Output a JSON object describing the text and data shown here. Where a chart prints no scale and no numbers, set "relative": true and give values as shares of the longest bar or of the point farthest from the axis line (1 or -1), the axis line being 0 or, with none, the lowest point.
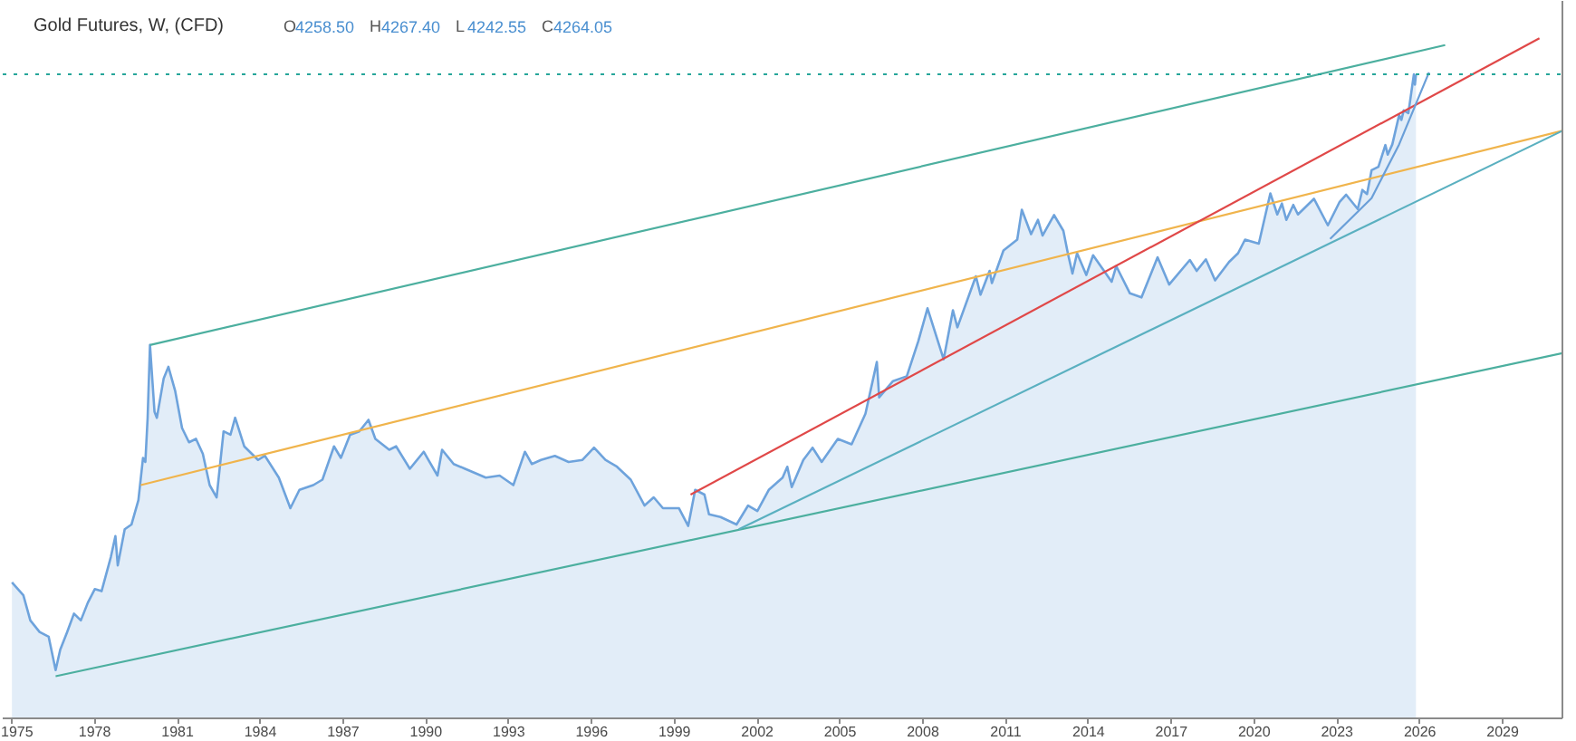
{
  "chart_data": {
    "type": "area",
    "title": "Gold Futures, W, (CFD)",
    "annotations": [
      "O4258.50",
      "H4267.40",
      "L4242.55",
      "C4264.05"
    ],
    "relative": true,
    "xlim": [
      "1974-09",
      "2031-03"
    ],
    "xticks": [
      "1975",
      "1978",
      "1981",
      "1984",
      "1987",
      "1990",
      "1993",
      "1996",
      "1999",
      "2002",
      "2005",
      "2008",
      "2011",
      "2014",
      "2017",
      "2020",
      "2023",
      "2026",
      "2029"
    ],
    "ref_lines": [
      {
        "axis": "y",
        "value": 0.947,
        "color": "#26a69a",
        "line_style": "dotted"
      }
    ],
    "series": [
      {
        "color": "#6ea3dc",
        "x": [
          "1975-01",
          "1975-06",
          "1975-09",
          "1976-01",
          "1976-05",
          "1976-08",
          "1976-10",
          "1977-01",
          "1977-04",
          "1977-07",
          "1977-10",
          "1978-01",
          "1978-04",
          "1978-08",
          "1978-10",
          "1978-11",
          "1979-02",
          "1979-05",
          "1979-08",
          "1979-10",
          "1979-11",
          "1979-12",
          "1980-01",
          "1980-03",
          "1980-04",
          "1980-07",
          "1980-09",
          "1980-12",
          "1981-03",
          "1981-06",
          "1981-09",
          "1981-12",
          "1982-03",
          "1982-06",
          "1982-09",
          "1982-12",
          "1983-02",
          "1983-06",
          "1983-12",
          "1984-03",
          "1984-09",
          "1985-02",
          "1985-06",
          "1985-12",
          "1986-04",
          "1986-09",
          "1986-12",
          "1987-04",
          "1987-08",
          "1987-12",
          "1988-03",
          "1988-09",
          "1988-12",
          "1989-06",
          "1989-12",
          "1990-06",
          "1990-08",
          "1991-01",
          "1991-06",
          "1992-03",
          "1992-09",
          "1993-03",
          "1993-08",
          "1993-11",
          "1994-03",
          "1994-09",
          "1995-03",
          "1995-09",
          "1996-02",
          "1996-07",
          "1996-12",
          "1997-06",
          "1997-12",
          "1998-04",
          "1998-08",
          "1999-03",
          "1999-07",
          "1999-10",
          "2000-02",
          "2000-04",
          "2000-09",
          "2001-04",
          "2001-09",
          "2002-01",
          "2002-06",
          "2002-12",
          "2003-02",
          "2003-04",
          "2003-09",
          "2004-01",
          "2004-05",
          "2004-12",
          "2005-06",
          "2005-12",
          "2006-05",
          "2006-06",
          "2006-12",
          "2007-06",
          "2007-11",
          "2008-03",
          "2008-10",
          "2009-02",
          "2009-04",
          "2009-12",
          "2010-02",
          "2010-06",
          "2010-07",
          "2010-12",
          "2011-06",
          "2011-08",
          "2011-12",
          "2012-03",
          "2012-05",
          "2012-10",
          "2013-02",
          "2013-04",
          "2013-06",
          "2013-08",
          "2013-12",
          "2014-03",
          "2014-11",
          "2015-01",
          "2015-07",
          "2015-12",
          "2016-07",
          "2016-12",
          "2017-09",
          "2017-12",
          "2018-04",
          "2018-08",
          "2019-02",
          "2019-06",
          "2019-09",
          "2020-03",
          "2020-08",
          "2020-11",
          "2021-01",
          "2021-03",
          "2021-06",
          "2021-08",
          "2022-03",
          "2022-09",
          "2023-02",
          "2023-05",
          "2023-10",
          "2023-12",
          "2024-02",
          "2024-04",
          "2024-07",
          "2024-10",
          "2024-11",
          "2025-01",
          "2025-04",
          "2025-05",
          "2025-06",
          "2025-08",
          "2025-09",
          "2025-10-13",
          "2025-10-27",
          "2025-11-10"
        ],
        "values": [
          0.2,
          0.181,
          0.144,
          0.127,
          0.12,
          0.071,
          0.101,
          0.127,
          0.154,
          0.144,
          0.17,
          0.19,
          0.187,
          0.237,
          0.268,
          0.225,
          0.278,
          0.285,
          0.321,
          0.383,
          0.377,
          0.442,
          0.549,
          0.451,
          0.442,
          0.5,
          0.517,
          0.481,
          0.427,
          0.406,
          0.411,
          0.389,
          0.343,
          0.325,
          0.422,
          0.417,
          0.442,
          0.4,
          0.38,
          0.386,
          0.354,
          0.309,
          0.336,
          0.343,
          0.351,
          0.4,
          0.383,
          0.417,
          0.422,
          0.439,
          0.411,
          0.395,
          0.4,
          0.367,
          0.392,
          0.357,
          0.395,
          0.374,
          0.367,
          0.354,
          0.357,
          0.343,
          0.392,
          0.374,
          0.38,
          0.386,
          0.377,
          0.38,
          0.398,
          0.38,
          0.37,
          0.351,
          0.313,
          0.325,
          0.309,
          0.309,
          0.283,
          0.336,
          0.329,
          0.3,
          0.296,
          0.285,
          0.313,
          0.305,
          0.336,
          0.354,
          0.37,
          0.34,
          0.38,
          0.398,
          0.377,
          0.411,
          0.403,
          0.448,
          0.524,
          0.472,
          0.496,
          0.503,
          0.555,
          0.603,
          0.528,
          0.6,
          0.575,
          0.65,
          0.623,
          0.658,
          0.64,
          0.688,
          0.704,
          0.748,
          0.712,
          0.733,
          0.71,
          0.74,
          0.717,
          0.684,
          0.654,
          0.684,
          0.652,
          0.681,
          0.642,
          0.665,
          0.625,
          0.619,
          0.678,
          0.638,
          0.674,
          0.658,
          0.675,
          0.644,
          0.671,
          0.684,
          0.704,
          0.698,
          0.772,
          0.741,
          0.757,
          0.733,
          0.755,
          0.741,
          0.764,
          0.725,
          0.759,
          0.77,
          0.749,
          0.777,
          0.771,
          0.806,
          0.811,
          0.843,
          0.829,
          0.844,
          0.887,
          0.88,
          0.894,
          0.89,
          0.914,
          0.947,
          0.932,
          0.947
        ]
      },
      {
        "type": "line",
        "color": "#4caf9f",
        "x": [
          "1980-01",
          "2026-12"
        ],
        "values": [
          0.549,
          0.99
        ]
      },
      {
        "type": "line",
        "color": "#f0b44c",
        "x": [
          "1979-09",
          "2031-03"
        ],
        "values": [
          0.343,
          0.864
        ]
      },
      {
        "type": "line",
        "color": "#e04848",
        "x": [
          "1999-08",
          "2030-05"
        ],
        "values": [
          0.329,
          1
        ]
      },
      {
        "type": "line",
        "color": "#4caf9f",
        "x": [
          "1976-08",
          "2031-03"
        ],
        "values": [
          0.062,
          0.537
        ]
      },
      {
        "type": "line",
        "color": "#5ab0c0",
        "x": [
          "2001-05",
          "2031-03"
        ],
        "values": [
          0.278,
          0.864
        ]
      },
      {
        "type": "line",
        "color": "#6a9fd8",
        "x": [
          "2022-10",
          "2024-04",
          "2025-04",
          "2026-05"
        ],
        "values": [
          0.705,
          0.765,
          0.844,
          0.95
        ]
      }
    ]
  }
}
